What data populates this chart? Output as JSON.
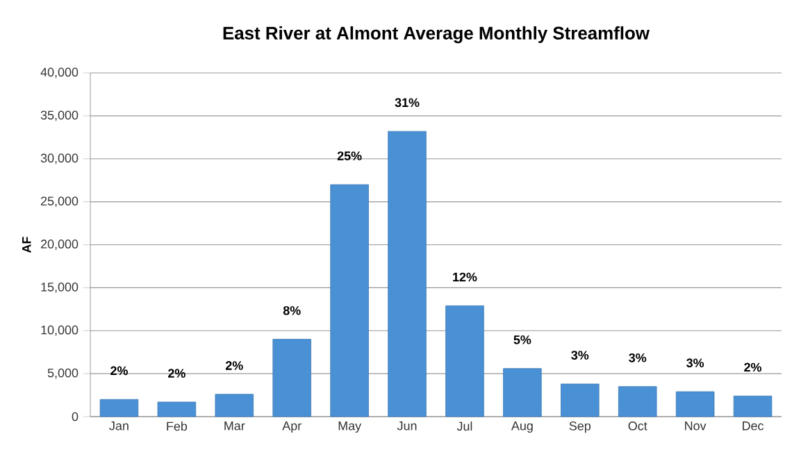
{
  "chart_data": {
    "type": "bar",
    "title": "East River at Almont Average Monthly Streamflow",
    "ylabel": "AF",
    "categories": [
      "Jan",
      "Feb",
      "Mar",
      "Apr",
      "May",
      "Jun",
      "Jul",
      "Aug",
      "Sep",
      "Oct",
      "Nov",
      "Dec"
    ],
    "values": [
      2000,
      1700,
      2600,
      9000,
      27000,
      33200,
      12900,
      5600,
      3800,
      3500,
      2900,
      2400
    ],
    "annotations": [
      {
        "text": "2%",
        "x": "Jan",
        "y": 2000
      },
      {
        "text": "2%",
        "x": "Feb",
        "y": 1700
      },
      {
        "text": "2%",
        "x": "Mar",
        "y": 2600
      },
      {
        "text": "8%",
        "x": "Apr",
        "y": 9000
      },
      {
        "text": "25%",
        "x": "May",
        "y": 27000
      },
      {
        "text": "31%",
        "x": "Jun",
        "y": 33200
      },
      {
        "text": "12%",
        "x": "Jul",
        "y": 12900
      },
      {
        "text": "5%",
        "x": "Aug",
        "y": 5600
      },
      {
        "text": "3%",
        "x": "Sep",
        "y": 3800
      },
      {
        "text": "3%",
        "x": "Oct",
        "y": 3500
      },
      {
        "text": "3%",
        "x": "Nov",
        "y": 2900
      },
      {
        "text": "2%",
        "x": "Dec",
        "y": 2400
      }
    ],
    "color": "#4a90d4",
    "ylim": [
      0,
      40000
    ],
    "yticks": [
      {
        "value": 0,
        "label": "0"
      },
      {
        "value": 5000,
        "label": "5,000"
      },
      {
        "value": 10000,
        "label": "10,000"
      },
      {
        "value": 15000,
        "label": "15,000"
      },
      {
        "value": 20000,
        "label": "20,000"
      },
      {
        "value": 25000,
        "label": "25,000"
      },
      {
        "value": 30000,
        "label": "30,000"
      },
      {
        "value": 35000,
        "label": "35,000"
      },
      {
        "value": 40000,
        "label": "40,000"
      }
    ],
    "grid": "y"
  }
}
